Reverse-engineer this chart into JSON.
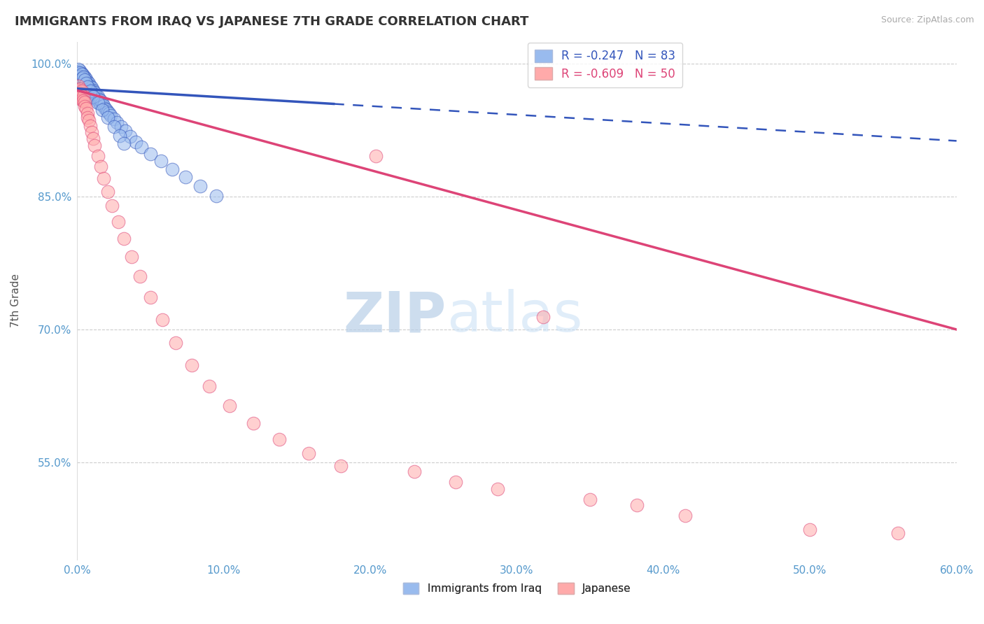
{
  "title": "IMMIGRANTS FROM IRAQ VS JAPANESE 7TH GRADE CORRELATION CHART",
  "source_text": "Source: ZipAtlas.com",
  "xlabel_bottom": "Immigrants from Iraq",
  "xlabel_bottom2": "Japanese",
  "ylabel": "7th Grade",
  "watermark_zip": "ZIP",
  "watermark_atlas": "atlas",
  "xmin": 0.0,
  "xmax": 0.6,
  "ymin": 0.44,
  "ymax": 1.025,
  "blue_R": -0.247,
  "blue_N": 83,
  "pink_R": -0.609,
  "pink_N": 50,
  "yticks": [
    0.55,
    0.7,
    0.85,
    1.0
  ],
  "ytick_labels": [
    "55.0%",
    "70.0%",
    "85.0%",
    "100.0%"
  ],
  "xtick_vals": [
    0.0,
    0.1,
    0.2,
    0.3,
    0.4,
    0.5,
    0.6
  ],
  "xtick_labels": [
    "0.0%",
    "10.0%",
    "20.0%",
    "30.0%",
    "40.0%",
    "50.0%",
    "60.0%"
  ],
  "blue_color": "#99bbee",
  "pink_color": "#ffaaaa",
  "blue_line_color": "#3355bb",
  "pink_line_color": "#dd4477",
  "grid_color": "#cccccc",
  "background_color": "#ffffff",
  "title_color": "#333333",
  "axis_tick_color": "#5599cc",
  "blue_line_y0": 0.972,
  "blue_line_y1": 0.913,
  "pink_line_y0": 0.97,
  "pink_line_y1": 0.7,
  "blue_solid_xend": 0.175,
  "blue_scatter_x": [
    0.001,
    0.001,
    0.001,
    0.001,
    0.002,
    0.002,
    0.002,
    0.002,
    0.002,
    0.003,
    0.003,
    0.003,
    0.003,
    0.003,
    0.004,
    0.004,
    0.004,
    0.004,
    0.005,
    0.005,
    0.005,
    0.005,
    0.006,
    0.006,
    0.006,
    0.007,
    0.007,
    0.008,
    0.008,
    0.008,
    0.009,
    0.009,
    0.01,
    0.01,
    0.01,
    0.011,
    0.011,
    0.012,
    0.012,
    0.013,
    0.013,
    0.014,
    0.015,
    0.015,
    0.016,
    0.016,
    0.017,
    0.018,
    0.019,
    0.02,
    0.021,
    0.022,
    0.023,
    0.025,
    0.027,
    0.03,
    0.033,
    0.036,
    0.04,
    0.044,
    0.05,
    0.057,
    0.065,
    0.074,
    0.084,
    0.095,
    0.001,
    0.001,
    0.002,
    0.002,
    0.003,
    0.003,
    0.004,
    0.005,
    0.006,
    0.007,
    0.009,
    0.011,
    0.014,
    0.017,
    0.021,
    0.025,
    0.029,
    0.032
  ],
  "blue_scatter_y": [
    0.99,
    0.985,
    0.982,
    0.978,
    0.992,
    0.988,
    0.984,
    0.98,
    0.976,
    0.989,
    0.985,
    0.981,
    0.977,
    0.973,
    0.987,
    0.983,
    0.979,
    0.975,
    0.985,
    0.981,
    0.977,
    0.973,
    0.983,
    0.979,
    0.975,
    0.98,
    0.976,
    0.978,
    0.975,
    0.971,
    0.975,
    0.971,
    0.973,
    0.969,
    0.965,
    0.97,
    0.966,
    0.968,
    0.964,
    0.965,
    0.961,
    0.963,
    0.96,
    0.956,
    0.958,
    0.954,
    0.956,
    0.953,
    0.95,
    0.948,
    0.946,
    0.944,
    0.942,
    0.938,
    0.934,
    0.929,
    0.924,
    0.918,
    0.912,
    0.906,
    0.898,
    0.89,
    0.881,
    0.872,
    0.862,
    0.851,
    0.991,
    0.994,
    0.99,
    0.986,
    0.988,
    0.984,
    0.985,
    0.982,
    0.978,
    0.974,
    0.969,
    0.963,
    0.956,
    0.948,
    0.939,
    0.929,
    0.919,
    0.91
  ],
  "pink_scatter_x": [
    0.001,
    0.001,
    0.001,
    0.002,
    0.002,
    0.002,
    0.003,
    0.003,
    0.003,
    0.004,
    0.004,
    0.005,
    0.005,
    0.006,
    0.007,
    0.007,
    0.008,
    0.009,
    0.01,
    0.011,
    0.012,
    0.014,
    0.016,
    0.018,
    0.021,
    0.024,
    0.028,
    0.032,
    0.037,
    0.043,
    0.05,
    0.058,
    0.067,
    0.078,
    0.09,
    0.104,
    0.12,
    0.138,
    0.158,
    0.18,
    0.204,
    0.23,
    0.258,
    0.287,
    0.318,
    0.35,
    0.382,
    0.415,
    0.5,
    0.56
  ],
  "pink_scatter_y": [
    0.975,
    0.97,
    0.965,
    0.972,
    0.967,
    0.962,
    0.969,
    0.964,
    0.959,
    0.963,
    0.958,
    0.957,
    0.952,
    0.95,
    0.944,
    0.939,
    0.936,
    0.93,
    0.923,
    0.916,
    0.908,
    0.896,
    0.884,
    0.871,
    0.856,
    0.84,
    0.822,
    0.803,
    0.782,
    0.76,
    0.736,
    0.711,
    0.685,
    0.66,
    0.636,
    0.614,
    0.594,
    0.576,
    0.56,
    0.546,
    0.896,
    0.54,
    0.528,
    0.52,
    0.714,
    0.508,
    0.502,
    0.49,
    0.474,
    0.47
  ]
}
